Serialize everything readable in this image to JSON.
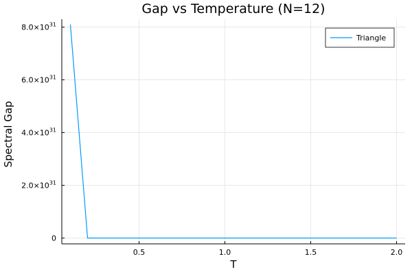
{
  "chart_data": {
    "type": "line",
    "title": "Gap vs Temperature (N=12)",
    "xlabel": "T",
    "ylabel": "Spectral Gap",
    "xlim": [
      0.05,
      2.05
    ],
    "ylim": [
      -2.2e+30,
      8.3e+31
    ],
    "grid": true,
    "legend_position": "top-right",
    "x_ticks": [
      {
        "value": 0.5,
        "label": "0.5"
      },
      {
        "value": 1.0,
        "label": "1.0"
      },
      {
        "value": 1.5,
        "label": "1.5"
      },
      {
        "value": 2.0,
        "label": "2.0"
      }
    ],
    "y_ticks": [
      {
        "value": 0,
        "mantissa": "0",
        "exponent": ""
      },
      {
        "value": 2e+31,
        "mantissa": "2.0×10",
        "exponent": "31"
      },
      {
        "value": 4e+31,
        "mantissa": "4.0×10",
        "exponent": "31"
      },
      {
        "value": 6e+31,
        "mantissa": "6.0×10",
        "exponent": "31"
      },
      {
        "value": 8e+31,
        "mantissa": "8.0×10",
        "exponent": "31"
      }
    ],
    "series": [
      {
        "name": "Triangle",
        "color": "#009af9",
        "x": [
          0.1,
          0.2,
          0.3,
          0.4,
          0.5,
          0.6,
          0.7,
          0.8,
          0.9,
          1.0,
          1.1,
          1.2,
          1.3,
          1.4,
          1.5,
          1.6,
          1.7,
          1.8,
          1.9,
          2.0
        ],
        "y": [
          8.1e+31,
          0,
          0,
          0,
          0,
          0,
          0,
          0,
          0,
          0,
          0,
          0,
          0,
          0,
          0,
          0,
          0,
          0,
          0,
          0
        ]
      }
    ]
  }
}
